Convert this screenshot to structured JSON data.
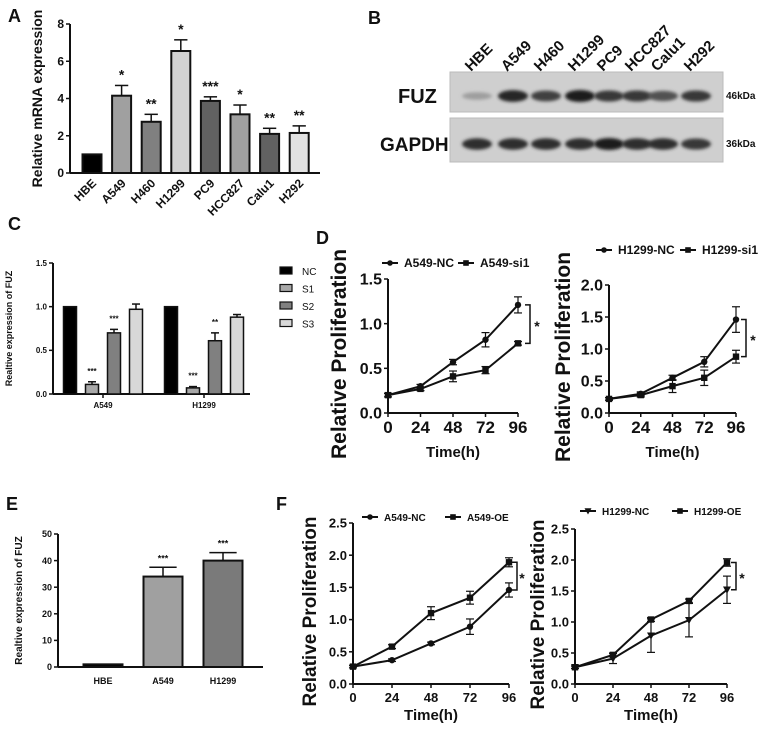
{
  "panel_labels": [
    "A",
    "B",
    "C",
    "D",
    "E",
    "F"
  ],
  "western_blot": {
    "lanes": [
      "HBE",
      "A549",
      "H460",
      "H1299",
      "PC9",
      "HCC827",
      "Calu1",
      "H292"
    ],
    "rows": [
      {
        "name": "FUZ",
        "size": "46kDa",
        "band_intensity": [
          0.25,
          0.95,
          0.8,
          1.0,
          0.85,
          0.85,
          0.7,
          0.85
        ]
      },
      {
        "name": "GAPDH",
        "size": "36kDa",
        "band_intensity": [
          0.9,
          0.9,
          0.9,
          0.9,
          1.0,
          0.9,
          0.9,
          0.85
        ]
      }
    ]
  },
  "chart_data": [
    {
      "panel": "A",
      "type": "bar",
      "title": "",
      "xlabel": "",
      "ylabel": "Relative mRNA expression",
      "ylim": [
        0,
        8
      ],
      "yticks": [
        0,
        2,
        4,
        6,
        8
      ],
      "categories": [
        "HBE",
        "A549",
        "H460",
        "H1299",
        "PC9",
        "HCC827",
        "Calu1",
        "H292"
      ],
      "values": [
        1,
        4.15,
        2.75,
        6.55,
        3.87,
        3.15,
        2.1,
        2.15
      ],
      "errors": [
        0,
        0.55,
        0.4,
        0.6,
        0.22,
        0.5,
        0.3,
        0.38
      ],
      "significance": [
        "",
        "*",
        "**",
        "*",
        "***",
        "*",
        "**",
        "**"
      ],
      "colors": [
        "#000000",
        "#a0a0a0",
        "#808080",
        "#d2d2d2",
        "#616161",
        "#a0a0a0",
        "#616161",
        "#e2e2e2"
      ]
    },
    {
      "panel": "C",
      "type": "bar",
      "title": "",
      "xlabel": "",
      "ylabel": "Realtive expression of FUZ",
      "ylim": [
        0,
        1.5
      ],
      "yticks": [
        "0.0",
        "0.5",
        "1.0",
        "1.5"
      ],
      "categories": [
        "A549",
        "H1299"
      ],
      "legend": "right",
      "series": [
        {
          "name": "NC",
          "values": [
            1,
            1
          ],
          "errors": [
            0,
            0
          ],
          "significance": [
            "",
            ""
          ],
          "color": "#000000"
        },
        {
          "name": "S1",
          "values": [
            0.11,
            0.07
          ],
          "errors": [
            0.03,
            0.015
          ],
          "significance": [
            "***",
            "***"
          ],
          "color": "#a8a8a8"
        },
        {
          "name": "S2",
          "values": [
            0.7,
            0.61
          ],
          "errors": [
            0.04,
            0.09
          ],
          "significance": [
            "***",
            "**"
          ],
          "color": "#808080"
        },
        {
          "name": "S3",
          "values": [
            0.97,
            0.88
          ],
          "errors": [
            0.06,
            0.03
          ],
          "significance": [
            "",
            ""
          ],
          "color": "#d8d8d8"
        }
      ]
    },
    {
      "panel": "D",
      "type": "line",
      "title": "",
      "xlabel": "Time(h)",
      "ylabel": "Relative Proliferation",
      "xlim": [
        0,
        96
      ],
      "xticks": [
        0,
        24,
        48,
        72,
        96
      ],
      "ylim": [
        0,
        1.5
      ],
      "yticks": [
        "0.0",
        "0.5",
        "1.0",
        "1.5"
      ],
      "legend": "top",
      "significance": "*",
      "series": [
        {
          "name": "A549-NC",
          "marker": "circle",
          "y": [
            0.2,
            0.3,
            0.57,
            0.82,
            1.21
          ],
          "errors": [
            0.02,
            0.02,
            0.03,
            0.08,
            0.09
          ]
        },
        {
          "name": "A549-si1",
          "marker": "square",
          "y": [
            0.2,
            0.27,
            0.41,
            0.48,
            0.78
          ],
          "errors": [
            0.02,
            0.02,
            0.06,
            0.04,
            0.02
          ]
        }
      ]
    },
    {
      "panel": "D",
      "type": "line",
      "title": "",
      "xlabel": "Time(h)",
      "ylabel": "Relative Proliferation",
      "xlim": [
        0,
        96
      ],
      "xticks": [
        0,
        24,
        48,
        72,
        96
      ],
      "ylim": [
        0,
        2.0
      ],
      "yticks": [
        "0.0",
        "0.5",
        "1.0",
        "1.5",
        "2.0"
      ],
      "legend": "top",
      "significance": "*",
      "series": [
        {
          "name": "H1299-NC",
          "marker": "circle",
          "y": [
            0.22,
            0.3,
            0.55,
            0.8,
            1.46
          ],
          "errors": [
            0.02,
            0.03,
            0.04,
            0.08,
            0.2
          ]
        },
        {
          "name": "H1299-si1",
          "marker": "square",
          "y": [
            0.22,
            0.28,
            0.42,
            0.55,
            0.88
          ],
          "errors": [
            0.02,
            0.03,
            0.1,
            0.12,
            0.1
          ]
        }
      ]
    },
    {
      "panel": "E",
      "type": "bar",
      "title": "",
      "xlabel": "",
      "ylabel": "Realtive expression of FUZ",
      "ylim": [
        0,
        50
      ],
      "yticks": [
        0,
        10,
        20,
        30,
        40,
        50
      ],
      "categories": [
        "HBE",
        "A549",
        "H1299"
      ],
      "values": [
        1,
        34,
        40
      ],
      "errors": [
        0,
        3.5,
        3
      ],
      "significance": [
        "",
        "***",
        "***"
      ],
      "colors": [
        "#000000",
        "#a0a0a0",
        "#7a7a7a"
      ]
    },
    {
      "panel": "F",
      "type": "line",
      "title": "",
      "xlabel": "Time(h)",
      "ylabel": "Relative Proliferation",
      "xlim": [
        0,
        96
      ],
      "xticks": [
        0,
        24,
        48,
        72,
        96
      ],
      "ylim": [
        0,
        2.5
      ],
      "yticks": [
        "0.0",
        "0.5",
        "1.0",
        "1.5",
        "2.0",
        "2.5"
      ],
      "legend": "top",
      "significance": "*",
      "series": [
        {
          "name": "A549-NC",
          "marker": "circle",
          "y": [
            0.27,
            0.37,
            0.63,
            0.89,
            1.46
          ],
          "errors": [
            0.02,
            0.02,
            0.02,
            0.12,
            0.11
          ]
        },
        {
          "name": "A549-OE",
          "marker": "square",
          "y": [
            0.27,
            0.58,
            1.1,
            1.34,
            1.89
          ],
          "errors": [
            0.02,
            0.03,
            0.1,
            0.1,
            0.07
          ]
        }
      ]
    },
    {
      "panel": "F",
      "type": "line",
      "title": "",
      "xlabel": "Time(h)",
      "ylabel": "Relative Proliferation",
      "xlim": [
        0,
        96
      ],
      "xticks": [
        0,
        24,
        48,
        72,
        96
      ],
      "ylim": [
        0,
        2.5
      ],
      "yticks": [
        "0.0",
        "0.5",
        "1.0",
        "1.5",
        "2.0",
        "2.5"
      ],
      "legend": "top",
      "significance": "*",
      "series": [
        {
          "name": "H1299-NC",
          "marker": "triangle-down",
          "y": [
            0.27,
            0.41,
            0.78,
            1.03,
            1.52
          ],
          "errors": [
            0.02,
            0.08,
            0.27,
            0.27,
            0.22
          ]
        },
        {
          "name": "H1299-OE",
          "marker": "square",
          "y": [
            0.27,
            0.47,
            1.04,
            1.34,
            1.96
          ],
          "errors": [
            0.02,
            0.03,
            0.03,
            0.03,
            0.06
          ]
        }
      ]
    }
  ]
}
